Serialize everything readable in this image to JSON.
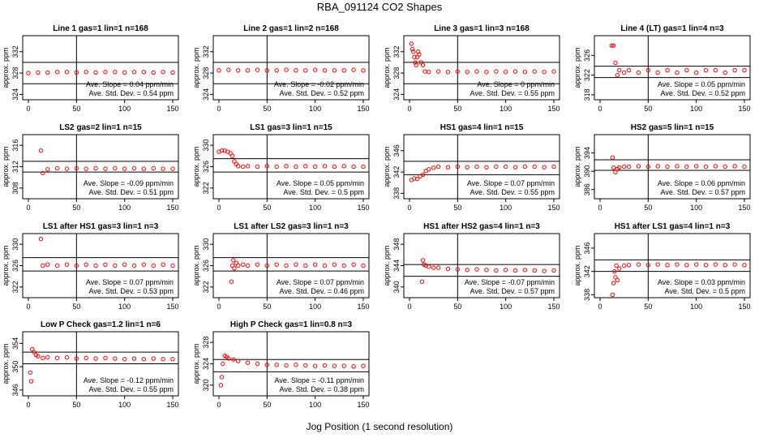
{
  "title": "RBA_091124  CO2 Shapes",
  "xlabel": "Jog Position (1 second resolution)",
  "colors": {
    "points": "#ff0000",
    "axis": "#000000"
  },
  "chart_data": [
    {
      "type": "scatter",
      "title": "Line 1 gas=1 lin=1 n=168",
      "ylabel": "approx. ppm",
      "xlim": [
        0,
        150
      ],
      "xticks": [
        0,
        50,
        100,
        150
      ],
      "ylim": [
        323,
        335
      ],
      "yticks": [
        324,
        328,
        332
      ],
      "hlines": [
        330,
        326
      ],
      "vline": 50,
      "slope": "Ave. Slope =  0.04  ppm/min",
      "sd": "Ave. Std. Dev. =  0.54  ppm",
      "x": [
        0,
        10,
        20,
        30,
        40,
        50,
        60,
        70,
        80,
        90,
        100,
        110,
        120,
        130,
        140,
        150
      ],
      "y": [
        328,
        328.1,
        328.1,
        328.2,
        328.2,
        328.1,
        328.2,
        328.1,
        328.2,
        328.2,
        328.1,
        328.2,
        328.2,
        328.1,
        328.2,
        328.1
      ]
    },
    {
      "type": "scatter",
      "title": "Line 2 gas=1 lin=2 n=168",
      "ylabel": "approx. ppm",
      "xlim": [
        0,
        150
      ],
      "xticks": [
        0,
        50,
        100,
        150
      ],
      "ylim": [
        323,
        335
      ],
      "yticks": [
        324,
        328,
        332
      ],
      "hlines": [
        330,
        326
      ],
      "vline": 50,
      "slope": "Ave. Slope =  -0.02  ppm/min",
      "sd": "Ave. Std. Dev. =  0.52  ppm",
      "x": [
        0,
        10,
        20,
        30,
        40,
        50,
        60,
        70,
        80,
        90,
        100,
        110,
        120,
        130,
        140,
        150
      ],
      "y": [
        328.5,
        328.6,
        328.5,
        328.5,
        328.6,
        328.5,
        328.5,
        328.6,
        328.5,
        328.5,
        328.6,
        328.5,
        328.5,
        328.5,
        328.6,
        328.5
      ]
    },
    {
      "type": "scatter",
      "title": "Line 3 gas=1 lin=3 n=168",
      "ylabel": "approx. ppm",
      "xlim": [
        0,
        150
      ],
      "xticks": [
        0,
        50,
        100,
        150
      ],
      "ylim": [
        323,
        335
      ],
      "yticks": [
        324,
        328,
        332
      ],
      "hlines": [
        330,
        326
      ],
      "vline": 50,
      "slope": "Ave. Slope =  0  ppm/min",
      "sd": "Ave. Std. Dev. =  0.55  ppm",
      "x": [
        2,
        3,
        4,
        5,
        6,
        7,
        8,
        9,
        10,
        12,
        14,
        16,
        20,
        30,
        40,
        50,
        60,
        70,
        80,
        90,
        100,
        110,
        120,
        130,
        140,
        150
      ],
      "y": [
        333.5,
        332.5,
        332,
        331,
        330,
        329.5,
        331,
        332,
        331.5,
        330,
        329.5,
        328.3,
        328.2,
        328.3,
        328.2,
        328.3,
        328.2,
        328.3,
        328.2,
        328.3,
        328.2,
        328.3,
        328.2,
        328.3,
        328.2,
        328.3
      ]
    },
    {
      "type": "scatter",
      "title": "Line 4 (LT) gas=1 lin=4 n=3",
      "ylabel": "approx. ppm",
      "xlim": [
        0,
        150
      ],
      "xticks": [
        0,
        50,
        100,
        150
      ],
      "ylim": [
        317,
        330
      ],
      "yticks": [
        318,
        322,
        326
      ],
      "hlines": [
        323.8,
        321.5
      ],
      "vline": 50,
      "slope": "Ave. Slope =  0.05  ppm/min",
      "sd": "Ave. Std. Dev. =  0.52  ppm",
      "x": [
        12,
        14,
        16,
        18,
        20,
        25,
        30,
        40,
        50,
        60,
        70,
        80,
        90,
        100,
        110,
        120,
        130,
        140,
        150
      ],
      "y": [
        328,
        328,
        324.5,
        322,
        323,
        322.5,
        323,
        322.5,
        323,
        322.5,
        323,
        322.5,
        323,
        322.5,
        323,
        323,
        322.5,
        323,
        323
      ]
    },
    {
      "type": "scatter",
      "title": "LS2 gas=2 lin=1 n=15",
      "ylabel": "approx. ppm",
      "xlim": [
        0,
        150
      ],
      "xticks": [
        0,
        50,
        100,
        150
      ],
      "ylim": [
        306,
        318
      ],
      "yticks": [
        308,
        312,
        316
      ],
      "hlines": [
        313,
        311
      ],
      "vline": 50,
      "slope": "Ave. Slope =  -0.09  ppm/min",
      "sd": "Ave. Std. Dev. =  0.51  ppm",
      "x": [
        13,
        15,
        20,
        30,
        40,
        50,
        60,
        70,
        80,
        90,
        100,
        110,
        120,
        130,
        140,
        150
      ],
      "y": [
        315,
        310.8,
        311.5,
        311.7,
        311.6,
        311.7,
        311.6,
        311.7,
        311.6,
        311.7,
        311.6,
        311.7,
        311.6,
        311.7,
        311.6,
        311.6
      ]
    },
    {
      "type": "scatter",
      "title": "LS1 gas=3 lin=1 n=15",
      "ylabel": "approx. ppm",
      "xlim": [
        0,
        150
      ],
      "xticks": [
        0,
        50,
        100,
        150
      ],
      "ylim": [
        320,
        332
      ],
      "yticks": [
        322,
        326,
        330
      ],
      "hlines": [
        327.5,
        325
      ],
      "vline": 50,
      "slope": "Ave. Slope =  0.05  ppm/min",
      "sd": "Ave. Std. Dev. =  0.5  ppm",
      "x": [
        0,
        3,
        6,
        9,
        12,
        14,
        16,
        18,
        20,
        25,
        30,
        40,
        50,
        60,
        70,
        80,
        90,
        100,
        110,
        120,
        130,
        140,
        150
      ],
      "y": [
        328.8,
        329,
        329,
        328.8,
        328.5,
        328,
        327,
        326.5,
        326.1,
        326,
        326.1,
        326,
        326.1,
        326,
        326.1,
        326,
        326.1,
        326,
        326.1,
        326,
        326.1,
        326,
        326
      ]
    },
    {
      "type": "scatter",
      "title": "HS1 gas=4 lin=1 n=15",
      "ylabel": "approx. ppm",
      "xlim": [
        0,
        150
      ],
      "xticks": [
        0,
        50,
        100,
        150
      ],
      "ylim": [
        337,
        349
      ],
      "yticks": [
        338,
        342,
        346
      ],
      "hlines": [
        344,
        341.5
      ],
      "vline": 50,
      "slope": "Ave. Slope =  0.07  ppm/min",
      "sd": "Ave. Std. Dev. =  0.55  ppm",
      "x": [
        2,
        5,
        8,
        11,
        14,
        17,
        20,
        25,
        30,
        40,
        50,
        60,
        70,
        80,
        90,
        100,
        110,
        120,
        130,
        140,
        150
      ],
      "y": [
        340.5,
        340.8,
        340.7,
        341.2,
        341.5,
        342.2,
        342.5,
        342.8,
        343,
        342.9,
        343,
        342.9,
        343,
        342.9,
        343,
        343,
        342.9,
        343,
        343,
        342.9,
        343
      ]
    },
    {
      "type": "scatter",
      "title": "HS2 gas=5 lin=1 n=15",
      "ylabel": "approx. ppm",
      "xlim": [
        0,
        150
      ],
      "xticks": [
        0,
        50,
        100,
        150
      ],
      "ylim": [
        384,
        398
      ],
      "yticks": [
        386,
        390,
        394
      ],
      "hlines": [
        392.5,
        390.2
      ],
      "vline": 50,
      "slope": "Ave. Slope =  0.06  ppm/min",
      "sd": "Ave. Std. Dev. =  0.57  ppm",
      "x": [
        13,
        14,
        16,
        18,
        20,
        25,
        30,
        40,
        50,
        60,
        70,
        80,
        90,
        100,
        110,
        120,
        130,
        140,
        150
      ],
      "y": [
        393,
        390.8,
        389.8,
        390.5,
        390.8,
        391,
        391,
        391.1,
        391,
        391.1,
        391,
        391.1,
        391,
        391.1,
        391,
        391.1,
        391,
        391.1,
        391
      ]
    },
    {
      "type": "scatter",
      "title": "LS1 after HS1 gas=3 lin=1 n=3",
      "ylabel": "approx. ppm",
      "xlim": [
        0,
        150
      ],
      "xticks": [
        0,
        50,
        100,
        150
      ],
      "ylim": [
        320,
        332
      ],
      "yticks": [
        322,
        326,
        330
      ],
      "hlines": [
        327.5,
        325
      ],
      "vline": 50,
      "slope": "Ave. Slope =  0.07  ppm/min",
      "sd": "Ave. Std. Dev. =  0.53  ppm",
      "x": [
        13,
        15,
        20,
        30,
        40,
        50,
        60,
        70,
        80,
        90,
        100,
        110,
        120,
        130,
        140,
        150
      ],
      "y": [
        331,
        326,
        326.2,
        326,
        326.2,
        326,
        326.2,
        326,
        326.2,
        326,
        326.2,
        326,
        326.2,
        326,
        326.2,
        326
      ]
    },
    {
      "type": "scatter",
      "title": "LS1 after LS2 gas=3 lin=1 n=3",
      "ylabel": "approx. ppm",
      "xlim": [
        0,
        150
      ],
      "xticks": [
        0,
        50,
        100,
        150
      ],
      "ylim": [
        320,
        332
      ],
      "yticks": [
        322,
        326,
        330
      ],
      "hlines": [
        327.5,
        325
      ],
      "vline": 50,
      "slope": "Ave. Slope =  0.07  ppm/min",
      "sd": "Ave. Std. Dev. =  0.46  ppm",
      "x": [
        13,
        14,
        15,
        16,
        18,
        20,
        25,
        30,
        40,
        50,
        60,
        70,
        80,
        90,
        100,
        110,
        120,
        130,
        140,
        150
      ],
      "y": [
        323,
        326,
        327,
        325.5,
        326.5,
        326,
        326.2,
        326,
        326.2,
        326,
        326.2,
        326,
        326.2,
        326,
        326.2,
        326,
        326.2,
        326,
        326.2,
        326
      ]
    },
    {
      "type": "scatter",
      "title": "HS1 after HS2 gas=4 lin=1 n=3",
      "ylabel": "approx. ppm",
      "xlim": [
        0,
        150
      ],
      "xticks": [
        0,
        50,
        100,
        150
      ],
      "ylim": [
        338,
        350
      ],
      "yticks": [
        340,
        344,
        348
      ],
      "hlines": [
        344.2,
        342
      ],
      "vline": 50,
      "slope": "Ave. Slope =  -0.07  ppm/min",
      "sd": "Ave. Std. Dev. =  0.57  ppm",
      "x": [
        13,
        14,
        15,
        17,
        20,
        25,
        30,
        40,
        50,
        60,
        70,
        80,
        90,
        100,
        110,
        120,
        130,
        140,
        150
      ],
      "y": [
        341,
        345,
        344.2,
        344,
        343.8,
        343.6,
        343.6,
        343.4,
        343.3,
        343.2,
        343.3,
        343.2,
        343.1,
        343.2,
        343.1,
        343.2,
        343.1,
        343,
        343.1
      ]
    },
    {
      "type": "scatter",
      "title": "HS1 after LS1 gas=4 lin=1 n=3",
      "ylabel": "approx. ppm",
      "xlim": [
        0,
        150
      ],
      "xticks": [
        0,
        50,
        100,
        150
      ],
      "ylim": [
        337.5,
        348.5
      ],
      "yticks": [
        338,
        342,
        346
      ],
      "hlines": [
        344,
        342
      ],
      "vline": 50,
      "slope": "Ave. Slope =  0.03  ppm/min",
      "sd": "Ave. Std. Dev. =  0.5  ppm",
      "x": [
        13,
        14,
        15,
        16,
        17,
        18,
        20,
        25,
        30,
        40,
        50,
        60,
        70,
        80,
        90,
        100,
        110,
        120,
        130,
        140,
        150
      ],
      "y": [
        338,
        340,
        342,
        341,
        343,
        340.5,
        342.5,
        343,
        343.1,
        343.2,
        343.1,
        343.2,
        343.1,
        343.2,
        343.1,
        343.2,
        343.1,
        343.2,
        343.1,
        343.2,
        343.1
      ]
    },
    {
      "type": "scatter",
      "title": "Low P Check gas=1.2 lin=1 n=6",
      "ylabel": "approx. ppm",
      "xlim": [
        0,
        150
      ],
      "xticks": [
        0,
        50,
        100,
        150
      ],
      "ylim": [
        345,
        356
      ],
      "yticks": [
        346,
        350,
        354
      ],
      "hlines": [
        352.5,
        350.5
      ],
      "vline": 50,
      "slope": "Ave. Slope =  -0.12  ppm/min",
      "sd": "Ave. Std. Dev. =  0.55  ppm",
      "x": [
        2,
        3,
        4,
        6,
        8,
        10,
        15,
        20,
        30,
        40,
        50,
        60,
        70,
        80,
        90,
        100,
        110,
        120,
        130,
        140,
        150
      ],
      "y": [
        349,
        347.5,
        353,
        352.5,
        352,
        351.8,
        351.5,
        351.6,
        351.5,
        351.6,
        351.4,
        351.5,
        351.4,
        351.5,
        351.4,
        351.3,
        351.4,
        351.3,
        351.4,
        351.3,
        351.3
      ]
    },
    {
      "type": "scatter",
      "title": "High P Check gas=1 lin=0.8 n=3",
      "ylabel": "approx. ppm",
      "xlim": [
        0,
        150
      ],
      "xticks": [
        0,
        50,
        100,
        150
      ],
      "ylim": [
        318,
        330
      ],
      "yticks": [
        320,
        324,
        328
      ],
      "hlines": [
        324.8,
        322.5
      ],
      "vline": 50,
      "slope": "Ave. Slope =  -0.11  ppm/min",
      "sd": "Ave. Std. Dev. =  0.38  ppm",
      "x": [
        2,
        3,
        4,
        6,
        8,
        10,
        15,
        20,
        30,
        40,
        50,
        60,
        70,
        80,
        90,
        100,
        110,
        120,
        130,
        140,
        150
      ],
      "y": [
        320,
        321.5,
        324,
        325.5,
        325.3,
        325,
        324.8,
        324.5,
        324.2,
        324,
        323.8,
        323.8,
        323.7,
        323.8,
        323.7,
        323.6,
        323.7,
        323.6,
        323.6,
        323.5,
        323.6
      ]
    }
  ]
}
